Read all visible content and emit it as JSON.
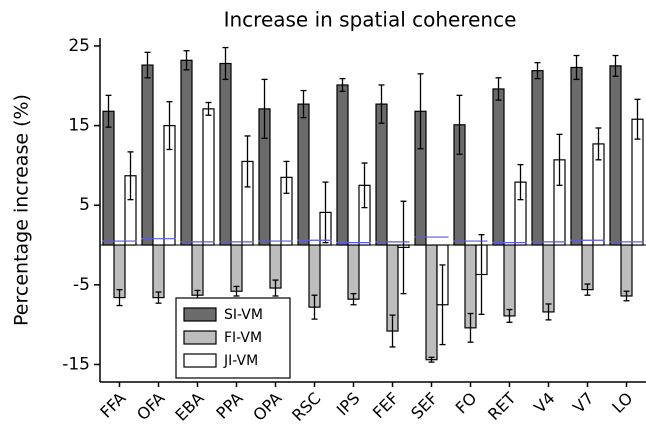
{
  "chart_data": {
    "type": "bar",
    "title": "Increase in spatial coherence",
    "y_label": "Percentage increase (%)",
    "categories": [
      "FFA",
      "OFA",
      "EBA",
      "PPA",
      "OPA",
      "RSC",
      "IPS",
      "FEF",
      "SEF",
      "FO",
      "RET",
      "V4",
      "V7",
      "LO"
    ],
    "series": [
      {
        "name": "SI-VM",
        "color": "#6b6b6b",
        "values": [
          16.8,
          22.6,
          23.2,
          22.8,
          17.1,
          17.7,
          20.1,
          17.7,
          16.8,
          15.1,
          19.6,
          21.9,
          22.3,
          22.5
        ],
        "errors": [
          2.0,
          1.6,
          1.2,
          2.0,
          3.7,
          1.7,
          0.8,
          2.4,
          4.7,
          3.7,
          1.4,
          1.0,
          1.5,
          1.3
        ]
      },
      {
        "name": "FI-VM",
        "color": "#bdbdbd",
        "values": [
          -6.6,
          -6.6,
          -6.3,
          -5.8,
          -5.4,
          -7.8,
          -6.8,
          -10.8,
          -14.4,
          -10.4,
          -8.9,
          -8.4,
          -5.6,
          -6.4
        ],
        "errors": [
          1.0,
          0.7,
          0.6,
          0.6,
          1.0,
          1.5,
          0.7,
          2.0,
          0.3,
          1.8,
          0.8,
          1.0,
          0.7,
          0.6
        ]
      },
      {
        "name": "JI-VM",
        "color": "#ffffff",
        "values": [
          8.7,
          15.0,
          17.1,
          10.5,
          8.5,
          4.1,
          7.5,
          -0.3,
          -7.5,
          -3.7,
          7.9,
          10.7,
          12.7,
          15.8
        ],
        "errors": [
          3.0,
          3.0,
          0.8,
          3.2,
          2.0,
          3.8,
          2.8,
          5.8,
          5.0,
          5.0,
          2.2,
          3.2,
          2.0,
          2.5
        ]
      }
    ],
    "reference_lines": {
      "color": "#5a5ae0",
      "values": [
        0.5,
        0.8,
        0.4,
        0.4,
        0.5,
        0.6,
        0.3,
        0.4,
        1.0,
        0.5,
        0.3,
        0.4,
        0.6,
        0.4
      ]
    },
    "ylim": [
      -17.2,
      26
    ],
    "yticks": [
      -15,
      -5,
      5,
      15,
      25
    ],
    "legend": "lower left",
    "grid": false
  }
}
